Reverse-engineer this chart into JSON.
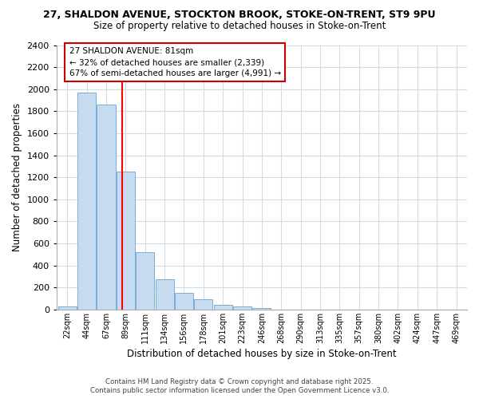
{
  "title_line1": "27, SHALDON AVENUE, STOCKTON BROOK, STOKE-ON-TRENT, ST9 9PU",
  "title_line2": "Size of property relative to detached houses in Stoke-on-Trent",
  "xlabel": "Distribution of detached houses by size in Stoke-on-Trent",
  "ylabel": "Number of detached properties",
  "bar_values": [
    30,
    1970,
    1860,
    1250,
    520,
    275,
    150,
    90,
    45,
    30,
    15,
    0,
    0,
    0,
    0,
    0,
    0,
    0,
    0,
    0,
    0
  ],
  "bar_color": "#c6daf0",
  "bar_edge_color": "#7aadd4",
  "tick_labels": [
    "22sqm",
    "44sqm",
    "67sqm",
    "89sqm",
    "111sqm",
    "134sqm",
    "156sqm",
    "178sqm",
    "201sqm",
    "223sqm",
    "246sqm",
    "268sqm",
    "290sqm",
    "313sqm",
    "335sqm",
    "357sqm",
    "380sqm",
    "402sqm",
    "424sqm",
    "447sqm",
    "469sqm"
  ],
  "ylim": [
    0,
    2400
  ],
  "yticks": [
    0,
    200,
    400,
    600,
    800,
    1000,
    1200,
    1400,
    1600,
    1800,
    2000,
    2200,
    2400
  ],
  "red_line_x": 2.82,
  "annotation_text": "27 SHALDON AVENUE: 81sqm\n← 32% of detached houses are smaller (2,339)\n67% of semi-detached houses are larger (4,991) →",
  "annotation_box_color": "#ffffff",
  "annotation_box_edge_color": "#cc0000",
  "footer_line1": "Contains HM Land Registry data © Crown copyright and database right 2025.",
  "footer_line2": "Contains public sector information licensed under the Open Government Licence v3.0.",
  "bg_color": "#ffffff",
  "grid_color": "#d0dce8"
}
